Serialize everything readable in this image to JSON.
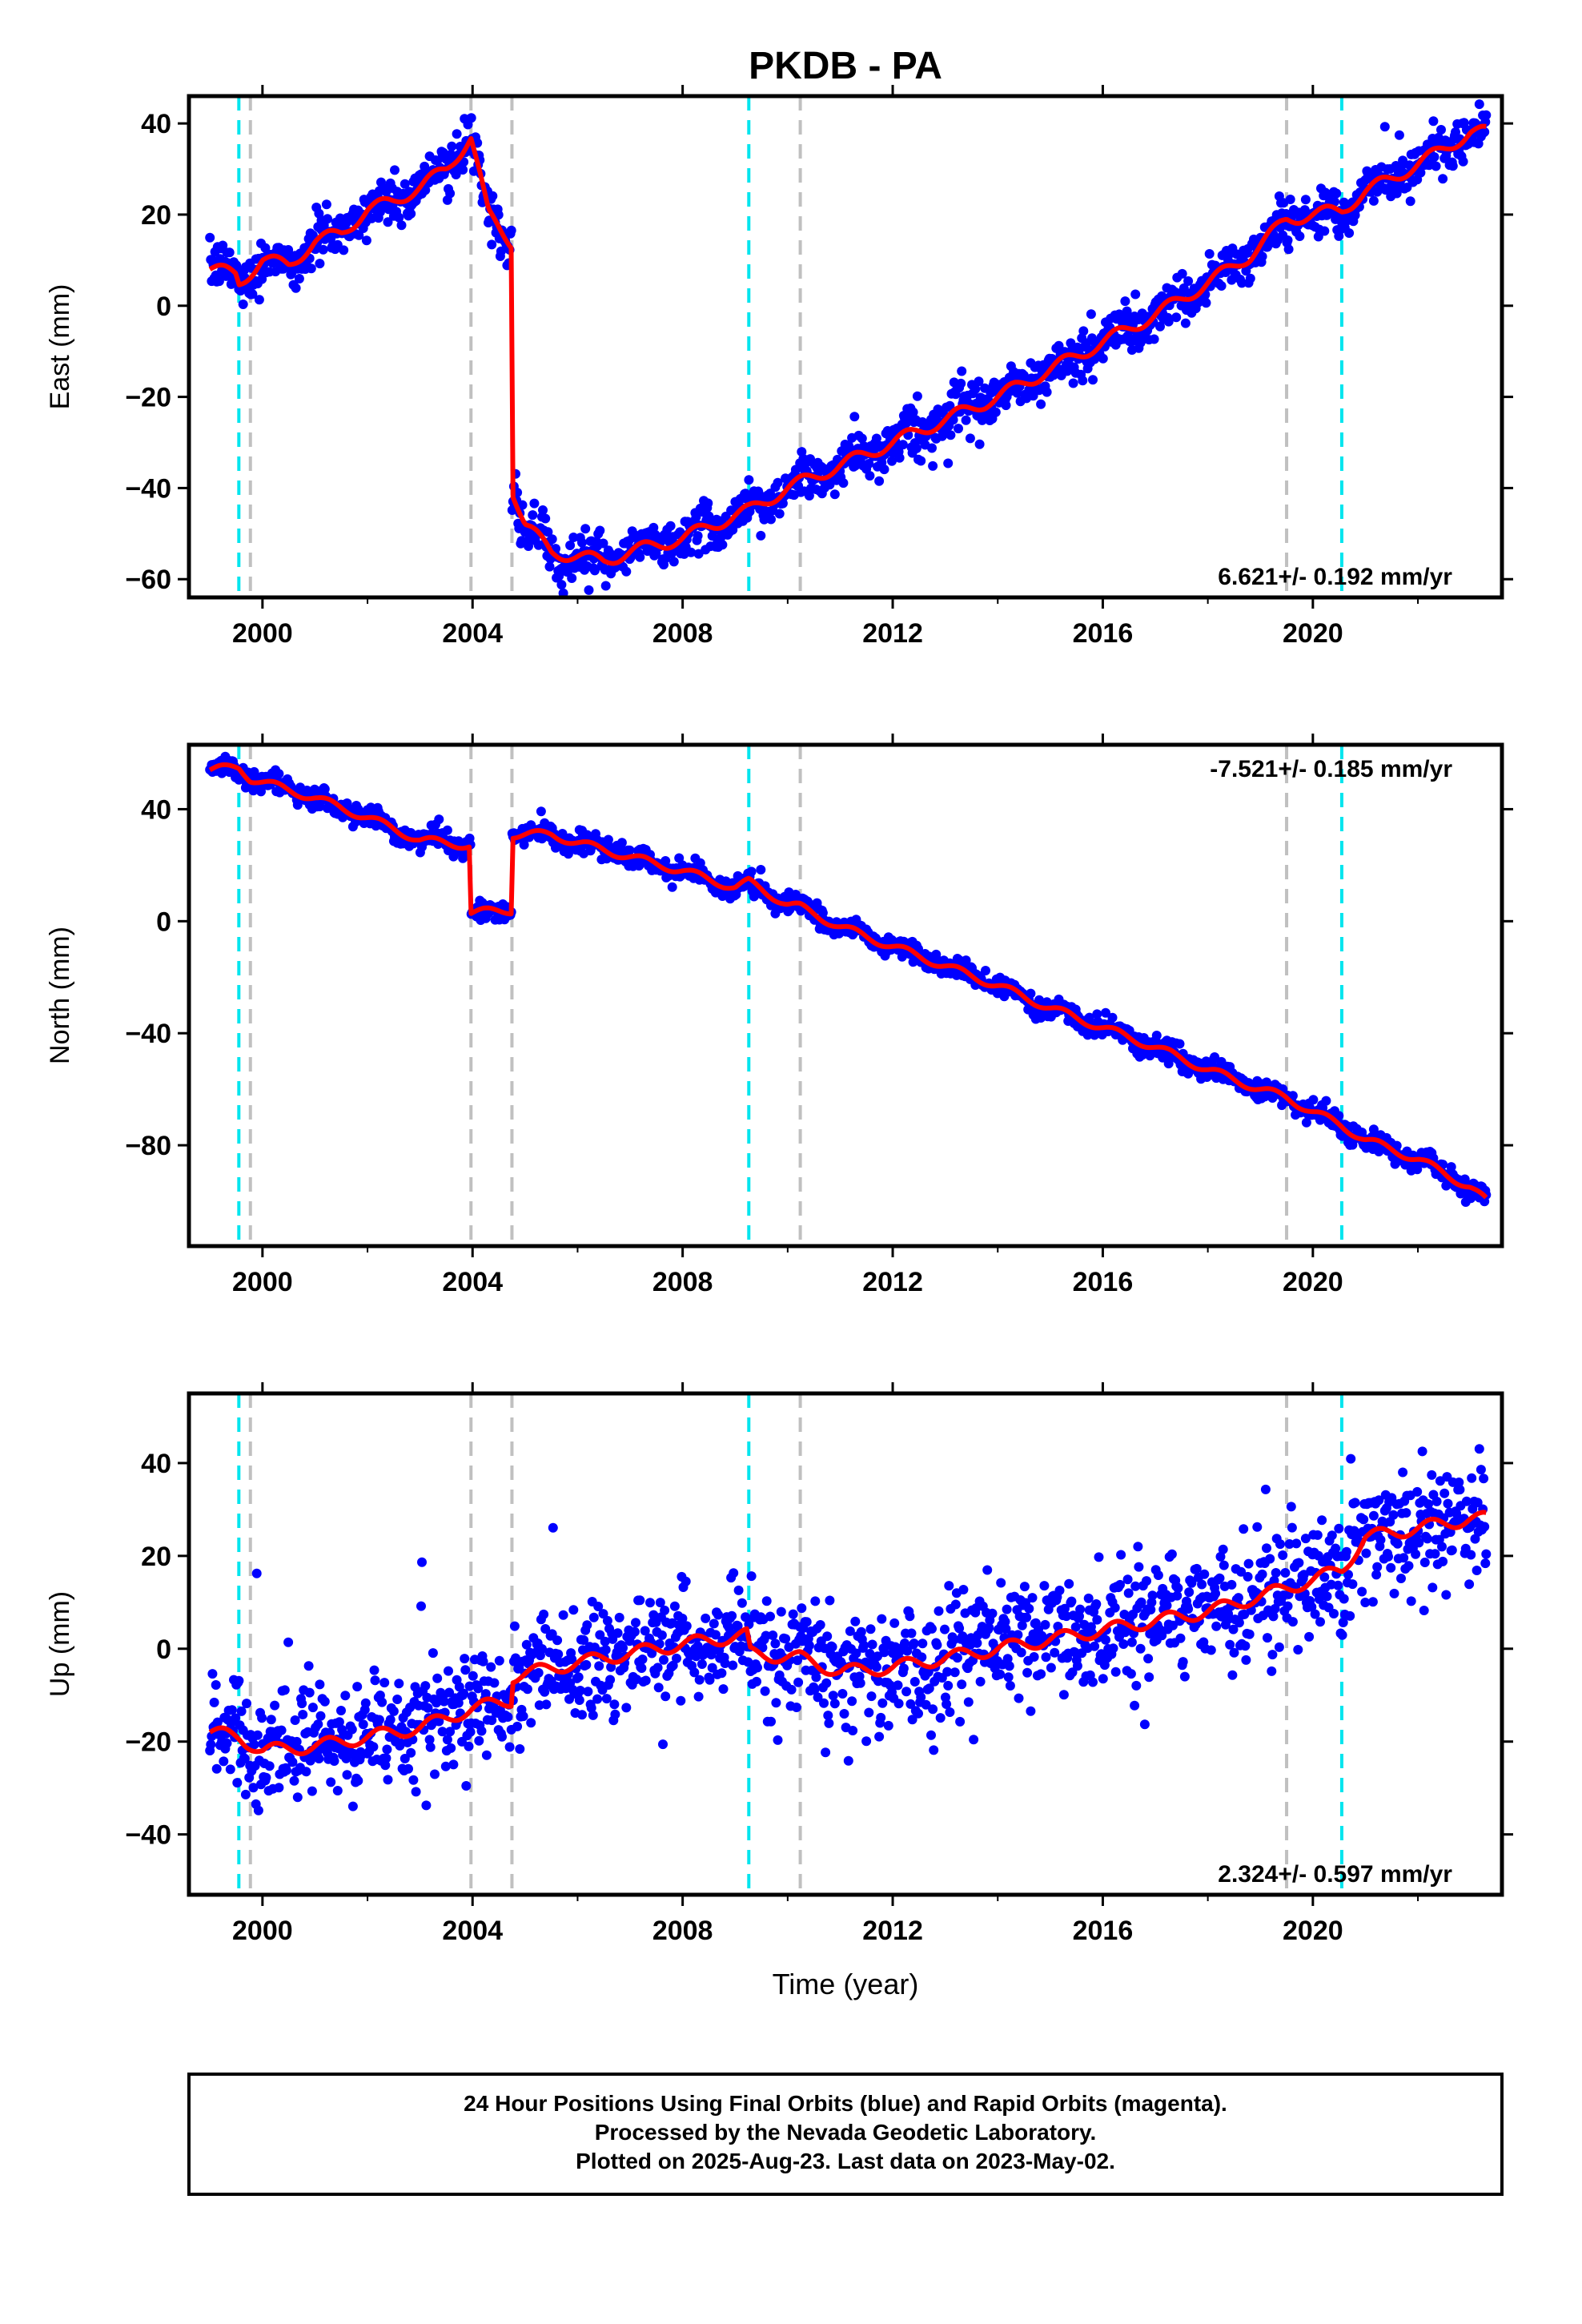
{
  "chart_data": {
    "type": "scatter",
    "title": "PKDB - PA",
    "xlabel": "Time (year)",
    "xlim": [
      1998.6,
      2023.6
    ],
    "xticks": [
      2000,
      2004,
      2008,
      2012,
      2016,
      2020
    ],
    "xtick_labels": [
      "2000",
      "2004",
      "2008",
      "2012",
      "2016",
      "2020"
    ],
    "colors": {
      "points": "#0000ff",
      "model": "#ff0000",
      "event_cyan": "#00e5ee",
      "event_gray": "#c0c0c0",
      "frame": "#000000"
    },
    "event_lines": {
      "cyan": [
        1999.55,
        2009.26,
        2020.55
      ],
      "gray": [
        1999.77,
        2003.97,
        2004.75,
        2010.24,
        2019.5
      ]
    },
    "panels": [
      {
        "name": "east",
        "ylabel": "East (mm)",
        "ylim": [
          -64,
          46
        ],
        "yticks": [
          -60,
          -40,
          -20,
          0,
          20,
          40
        ],
        "ytick_labels": [
          "−60",
          "−40",
          "−20",
          "0",
          "20",
          "40"
        ],
        "rate_text": "6.621+/- 0.192 mm/yr",
        "rate_position": "bottom-right",
        "model_x": [
          1999.0,
          1999.5,
          1999.55,
          2000.0,
          2000.5,
          2001.0,
          2001.5,
          2002.0,
          2002.5,
          2003.0,
          2003.5,
          2003.97,
          2004.3,
          2004.74,
          2004.75,
          2005.0,
          2005.5,
          2006.0,
          2006.5,
          2007.0,
          2008.0,
          2009.0,
          2009.25,
          2009.26,
          2010.0,
          2011.0,
          2012.0,
          2013.0,
          2014.0,
          2015.0,
          2016.0,
          2017.0,
          2018.0,
          2018.8,
          2019.5,
          2020.0,
          2020.55,
          2021.0,
          2022.0,
          2023.0,
          2023.3
        ],
        "model_y": [
          8,
          7,
          5,
          10,
          9,
          14,
          16,
          21,
          23,
          26,
          30,
          37,
          20,
          14,
          -40,
          -48,
          -54,
          -55,
          -56,
          -54,
          -51,
          -46,
          -45,
          -45,
          -40,
          -35,
          -30,
          -25,
          -20,
          -14,
          -8,
          -2,
          5,
          11,
          19,
          20,
          21,
          25,
          31,
          38,
          38
        ],
        "noise": 2.5,
        "outlier_rate": 0.02
      },
      {
        "name": "north",
        "ylabel": "North (mm)",
        "ylim": [
          -116,
          63
        ],
        "yticks": [
          -80,
          -40,
          0,
          40
        ],
        "ytick_labels": [
          "−80",
          "−40",
          "0",
          "40"
        ],
        "rate_text": "-7.521+/- 0.185 mm/yr",
        "rate_position": "top-right",
        "model_x": [
          1999.0,
          1999.55,
          1999.77,
          2001.0,
          2002.0,
          2003.0,
          2003.96,
          2003.97,
          2004.74,
          2004.75,
          2005.5,
          2006.0,
          2007.0,
          2008.0,
          2009.0,
          2009.26,
          2010.0,
          2010.24,
          2011.0,
          2012.0,
          2013.0,
          2014.0,
          2015.0,
          2016.0,
          2017.0,
          2018.0,
          2019.0,
          2019.5,
          2020.0,
          2020.55,
          2021.0,
          2022.0,
          2023.0,
          2023.3
        ],
        "model_y": [
          54,
          55,
          51,
          44,
          37,
          29,
          27,
          3,
          4,
          31,
          31,
          28,
          23,
          18,
          12,
          14,
          6,
          5,
          -2,
          -9,
          -16,
          -23,
          -31,
          -38,
          -45,
          -53,
          -60,
          -63,
          -68,
          -73,
          -78,
          -85,
          -95,
          -100
        ],
        "noise": 1.8,
        "outlier_rate": 0.01
      },
      {
        "name": "up",
        "ylabel": "Up (mm)",
        "ylim": [
          -53,
          55
        ],
        "yticks": [
          -40,
          -20,
          0,
          20,
          40
        ],
        "ytick_labels": [
          "−40",
          "−20",
          "0",
          "20",
          "40"
        ],
        "rate_text": "2.324+/- 0.597 mm/yr",
        "rate_position": "bottom-right",
        "model_x": [
          1999.0,
          1999.55,
          2000.0,
          2001.0,
          2002.0,
          2003.0,
          2003.97,
          2004.74,
          2004.75,
          2006.0,
          2008.0,
          2009.25,
          2009.26,
          2010.24,
          2011.0,
          2012.0,
          2014.0,
          2016.0,
          2018.0,
          2019.5,
          2020.55,
          2021.0,
          2022.0,
          2023.0,
          2023.3
        ],
        "model_y": [
          -18,
          -19,
          -22,
          -21,
          -19,
          -17,
          -13,
          -11,
          -6,
          -3,
          1,
          3,
          -1,
          -2,
          -5,
          -4,
          0,
          4,
          8,
          13,
          17,
          24,
          26,
          28,
          28
        ],
        "noise": 6,
        "outlier_rate": 0.03
      }
    ],
    "footer": [
      "24 Hour Positions Using Final Orbits (blue) and Rapid Orbits (magenta).",
      "Processed by the Nevada Geodetic Laboratory.",
      "Plotted on 2025-Aug-23. Last data on 2023-May-02."
    ]
  }
}
